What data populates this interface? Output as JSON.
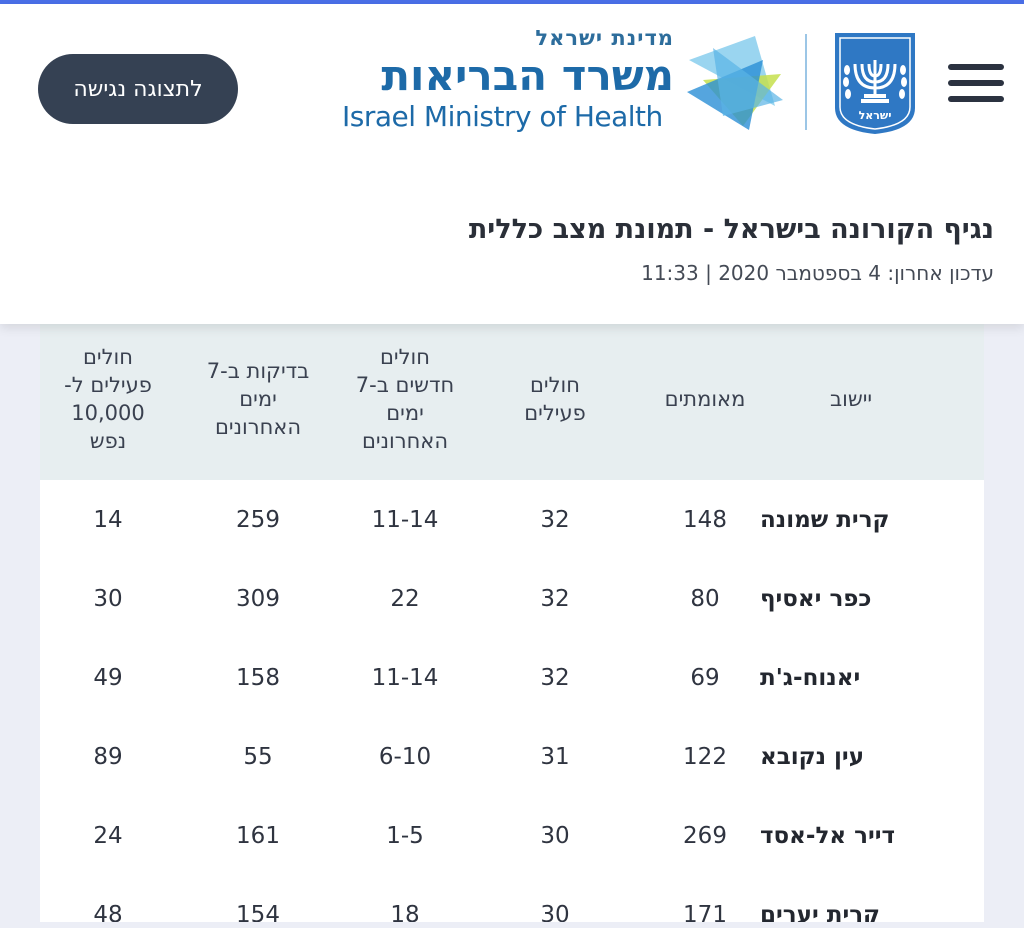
{
  "header": {
    "logo": {
      "state_text": "מדינת ישראל",
      "ministry_he": "משרד הבריאות",
      "ministry_en": "Israel Ministry of Health",
      "emblem_text": "ישראל"
    },
    "accessibility_button": "לתצוגה נגישה",
    "colors": {
      "accent": "#4a6fe8",
      "button": "#354153",
      "brand": "#1d6aa8"
    }
  },
  "page": {
    "title": "נגיף הקורונה בישראל - תמונת מצב כללית",
    "updated": "עדכון אחרון: 4 בספטמבר 2020  |  11:33"
  },
  "table": {
    "columns": [
      "יישוב",
      "מאומתים",
      "חולים\nפעילים",
      "חולים\nחדשים ב-7\nימים\nהאחרונים",
      "בדיקות ב-7\nימים\nהאחרונים",
      "חולים\nפעילים ל-\n10,000\nנפש"
    ],
    "rows": [
      [
        "קרית שמונה",
        "148",
        "32",
        "11-14",
        "259",
        "14"
      ],
      [
        "כפר יאסיף",
        "80",
        "32",
        "22",
        "309",
        "30"
      ],
      [
        "יאנוח-ג'ת",
        "69",
        "32",
        "11-14",
        "158",
        "49"
      ],
      [
        "עין נקובא",
        "122",
        "31",
        "6-10",
        "55",
        "89"
      ],
      [
        "דייר אל-אסד",
        "269",
        "30",
        "1-5",
        "161",
        "24"
      ],
      [
        "קרית יערים",
        "171",
        "30",
        "18",
        "154",
        "48"
      ]
    ]
  }
}
